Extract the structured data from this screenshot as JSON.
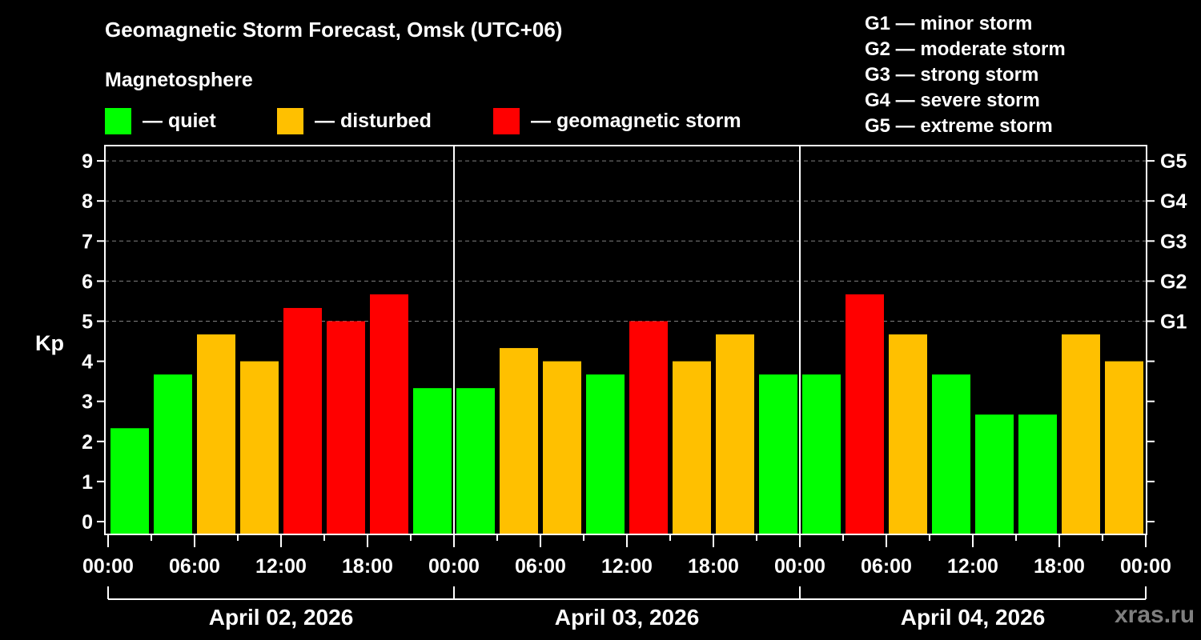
{
  "title": "Geomagnetic Storm Forecast, Omsk (UTC+06)",
  "subtitle": "Magnetosphere",
  "legend": [
    {
      "label": "— quiet",
      "color": "#00ff00"
    },
    {
      "label": "— disturbed",
      "color": "#ffc000"
    },
    {
      "label": "— geomagnetic storm",
      "color": "#ff0000"
    }
  ],
  "g_scale": [
    "G1 — minor storm",
    "G2 — moderate storm",
    "G3 — strong storm",
    "G4 — severe storm",
    "G5 — extreme storm"
  ],
  "watermark": "xras.ru",
  "colors": {
    "quiet": "#00ff00",
    "disturbed": "#ffc000",
    "storm": "#ff0000",
    "grid": "#808080",
    "axis": "#ffffff"
  },
  "chart_data": {
    "type": "bar",
    "title": "Geomagnetic Storm Forecast, Omsk (UTC+06)",
    "xlabel": "",
    "ylabel": "Kp",
    "ylim": [
      0,
      9
    ],
    "yticks": [
      0,
      1,
      2,
      3,
      4,
      5,
      6,
      7,
      8,
      9
    ],
    "right_axis_labels": [
      {
        "kp": 5,
        "label": "G1"
      },
      {
        "kp": 6,
        "label": "G2"
      },
      {
        "kp": 7,
        "label": "G3"
      },
      {
        "kp": 8,
        "label": "G4"
      },
      {
        "kp": 9,
        "label": "G5"
      }
    ],
    "grid": "dashed horizontal at Kp 5-9",
    "x_tick_labels": [
      "00:00",
      "06:00",
      "12:00",
      "18:00",
      "00:00",
      "06:00",
      "12:00",
      "18:00",
      "00:00",
      "06:00",
      "12:00",
      "18:00",
      "00:00"
    ],
    "days": [
      "April 02, 2026",
      "April 03, 2026",
      "April 04, 2026"
    ],
    "interval_hours": 3,
    "categories": [
      "Apr 02 00-03",
      "Apr 02 03-06",
      "Apr 02 06-09",
      "Apr 02 09-12",
      "Apr 02 12-15",
      "Apr 02 15-18",
      "Apr 02 18-21",
      "Apr 02 21-24",
      "Apr 03 00-03",
      "Apr 03 03-06",
      "Apr 03 06-09",
      "Apr 03 09-12",
      "Apr 03 12-15",
      "Apr 03 15-18",
      "Apr 03 18-21",
      "Apr 03 21-24",
      "Apr 04 00-03",
      "Apr 04 03-06",
      "Apr 04 06-09",
      "Apr 04 09-12",
      "Apr 04 12-15",
      "Apr 04 15-18",
      "Apr 04 18-21",
      "Apr 04 21-24"
    ],
    "values": [
      2.33,
      3.67,
      4.67,
      4.0,
      5.33,
      5.0,
      5.67,
      3.33,
      3.33,
      4.33,
      4.0,
      3.67,
      5.0,
      4.0,
      4.67,
      3.67,
      3.67,
      5.67,
      4.67,
      3.67,
      2.67,
      2.67,
      4.67,
      4.0
    ],
    "levels": [
      "quiet",
      "quiet",
      "disturbed",
      "disturbed",
      "storm",
      "storm",
      "storm",
      "quiet",
      "quiet",
      "disturbed",
      "disturbed",
      "quiet",
      "storm",
      "disturbed",
      "disturbed",
      "quiet",
      "quiet",
      "storm",
      "disturbed",
      "quiet",
      "quiet",
      "quiet",
      "disturbed",
      "disturbed"
    ]
  }
}
